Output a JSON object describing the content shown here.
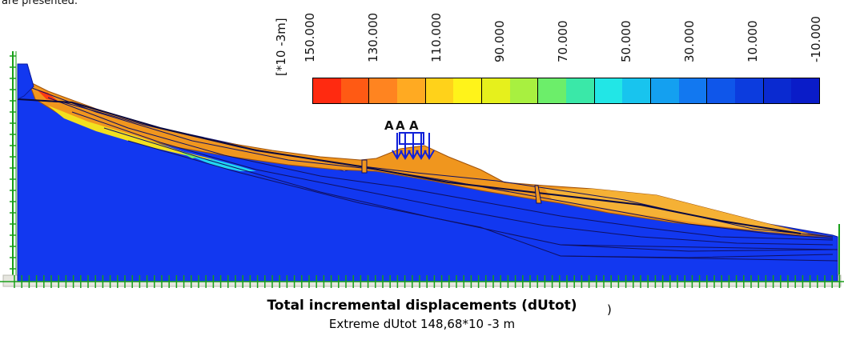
{
  "intro_text": "are presented.",
  "legend": {
    "unit": "[*10 -3m]",
    "ticks": [
      "150.000",
      "130.000",
      "110.000",
      "90.000",
      "70.000",
      "50.000",
      "30.000",
      "10.000",
      "-10.000"
    ],
    "colors": [
      "#ff2a10",
      "#ff5a14",
      "#ff8420",
      "#ffaa22",
      "#ffd21a",
      "#fff31a",
      "#e6f01c",
      "#a8f040",
      "#6cee6a",
      "#3ae8a8",
      "#22e6e6",
      "#18c4ee",
      "#14a0f0",
      "#1278f0",
      "#0f56ea",
      "#0c3cde",
      "#0a2ad0",
      "#0a1cc8"
    ]
  },
  "model": {
    "load_labels": [
      "A",
      "A",
      "A"
    ],
    "colors": {
      "domain": "#1238f0",
      "layer_orange": "#f0961e",
      "layer_light": "#f5b135",
      "yellow_zone": "#f2e020",
      "cyan_zone": "#22d6f0",
      "ground_axis": "#18a018",
      "load_arrows": "#1020d8"
    }
  },
  "caption": {
    "title": "Total incremental displacements (dUtot)",
    "subtitle": "Extreme dUtot 148,68*10 -3 m",
    "paren": ")"
  }
}
